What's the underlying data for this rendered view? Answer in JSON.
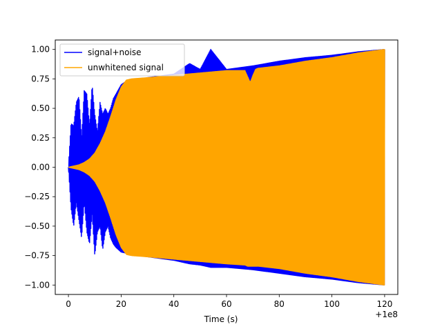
{
  "chart_data": {
    "type": "line",
    "title": "",
    "xlabel": "Time (s)",
    "ylabel": "",
    "x_offset_label": "+1e8",
    "xlim": [
      -5,
      125
    ],
    "ylim": [
      -1.08,
      1.08
    ],
    "xticks": [
      0,
      20,
      40,
      60,
      80,
      100,
      120
    ],
    "xtick_labels": [
      "0",
      "20",
      "40",
      "60",
      "80",
      "100",
      "120"
    ],
    "yticks": [
      -1.0,
      -0.75,
      -0.5,
      -0.25,
      0.0,
      0.25,
      0.5,
      0.75,
      1.0
    ],
    "ytick_labels": [
      "−1.00",
      "−0.75",
      "−0.50",
      "−0.25",
      "0.00",
      "0.25",
      "0.50",
      "0.75",
      "1.00"
    ],
    "grid": false,
    "legend_position": "upper-left",
    "series": [
      {
        "name": "signal+noise",
        "color": "#0000ff",
        "envelope": {
          "x": [
            0,
            1,
            2,
            3,
            4,
            5,
            6,
            7,
            8,
            9,
            10,
            11,
            12,
            13,
            14,
            15,
            16,
            17,
            18,
            19,
            20,
            22,
            24,
            30,
            40,
            46,
            50,
            54,
            60,
            70,
            80,
            90,
            100,
            110,
            120
          ],
          "upper": [
            0.0,
            0.37,
            0.35,
            0.55,
            0.6,
            0.25,
            0.65,
            0.62,
            0.35,
            0.7,
            0.45,
            0.3,
            0.55,
            0.45,
            0.5,
            0.45,
            0.5,
            0.58,
            0.62,
            0.66,
            0.7,
            0.73,
            0.74,
            0.76,
            0.79,
            0.88,
            0.83,
            1.0,
            0.83,
            0.86,
            0.9,
            0.93,
            0.95,
            0.98,
            1.0
          ],
          "lower": [
            0.0,
            -0.35,
            -0.5,
            -0.3,
            -0.45,
            -0.6,
            -0.3,
            -0.55,
            -0.65,
            -0.4,
            -0.75,
            -0.55,
            -0.5,
            -0.7,
            -0.55,
            -0.5,
            -0.6,
            -0.65,
            -0.68,
            -0.7,
            -0.72,
            -0.73,
            -0.74,
            -0.76,
            -0.79,
            -0.82,
            -0.83,
            -0.85,
            -0.85,
            -0.87,
            -0.9,
            -0.93,
            -0.95,
            -0.98,
            -1.0
          ]
        }
      },
      {
        "name": "unwhitened signal",
        "color": "#ffa500",
        "envelope": {
          "x": [
            0,
            2,
            4,
            6,
            8,
            10,
            12,
            14,
            16,
            18,
            20,
            22,
            24,
            30,
            40,
            50,
            60,
            67,
            68,
            69,
            70,
            71,
            72,
            80,
            90,
            100,
            110,
            120
          ],
          "upper": [
            0.0,
            0.01,
            0.02,
            0.04,
            0.07,
            0.12,
            0.2,
            0.3,
            0.43,
            0.57,
            0.68,
            0.74,
            0.75,
            0.76,
            0.78,
            0.8,
            0.82,
            0.82,
            0.77,
            0.72,
            0.78,
            0.83,
            0.84,
            0.86,
            0.9,
            0.93,
            0.97,
            1.0
          ],
          "lower": [
            0.0,
            -0.01,
            -0.02,
            -0.04,
            -0.07,
            -0.12,
            -0.2,
            -0.3,
            -0.43,
            -0.57,
            -0.68,
            -0.74,
            -0.75,
            -0.76,
            -0.78,
            -0.8,
            -0.82,
            -0.83,
            -0.84,
            -0.84,
            -0.84,
            -0.84,
            -0.84,
            -0.86,
            -0.9,
            -0.93,
            -0.97,
            -1.0
          ]
        }
      }
    ]
  }
}
